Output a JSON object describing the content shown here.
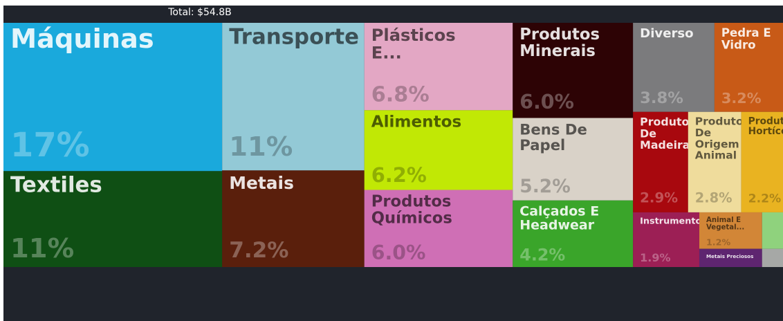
{
  "chart_data": {
    "type": "treemap",
    "title": "Total: $54.8B",
    "categories": [
      "Máquinas",
      "Textiles",
      "Transporte",
      "Metais",
      "Plásticos E...",
      "Alimentos",
      "Produtos Químicos",
      "Produtos Minerais",
      "Bens De Papel",
      "Calçados E Headwear",
      "Diverso",
      "Pedra E Vidro",
      "Produtos De Madeira",
      "Produtos De Origem Animal",
      "Produtos Hortícolas",
      "Instrumentos",
      "Animal E Vegetal...",
      "Metais Preciosos",
      null,
      null
    ],
    "values": [
      17,
      11,
      11,
      7.2,
      6.8,
      6.2,
      6.0,
      6.0,
      5.2,
      4.2,
      3.8,
      3.2,
      2.9,
      2.8,
      2.2,
      1.9,
      1.2,
      0.6,
      0.4,
      0.2
    ],
    "value_labels": [
      "17%",
      "11%",
      "11%",
      "7.2%",
      "6.8%",
      "6.2%",
      "6.0%",
      "6.0%",
      "5.2%",
      "4.2%",
      "3.8%",
      "3.2%",
      "2.9%",
      "2.8%",
      "2.2%",
      "1.9%",
      "1.2%",
      null,
      null,
      null
    ],
    "colors": [
      "#1aa9dc",
      "#0f4f14",
      "#93c9d6",
      "#5a1f0c",
      "#e3a7c4",
      "#c1e805",
      "#cf6fb5",
      "#2d0305",
      "#d9d2c8",
      "#3aa52a",
      "#7b7b7d",
      "#c85a17",
      "#a8080e",
      "#efdc9c",
      "#e9b321",
      "#9c1f55",
      "#d28637",
      "#5e2570",
      "#8fd27d",
      "#a6a8a6"
    ]
  }
}
